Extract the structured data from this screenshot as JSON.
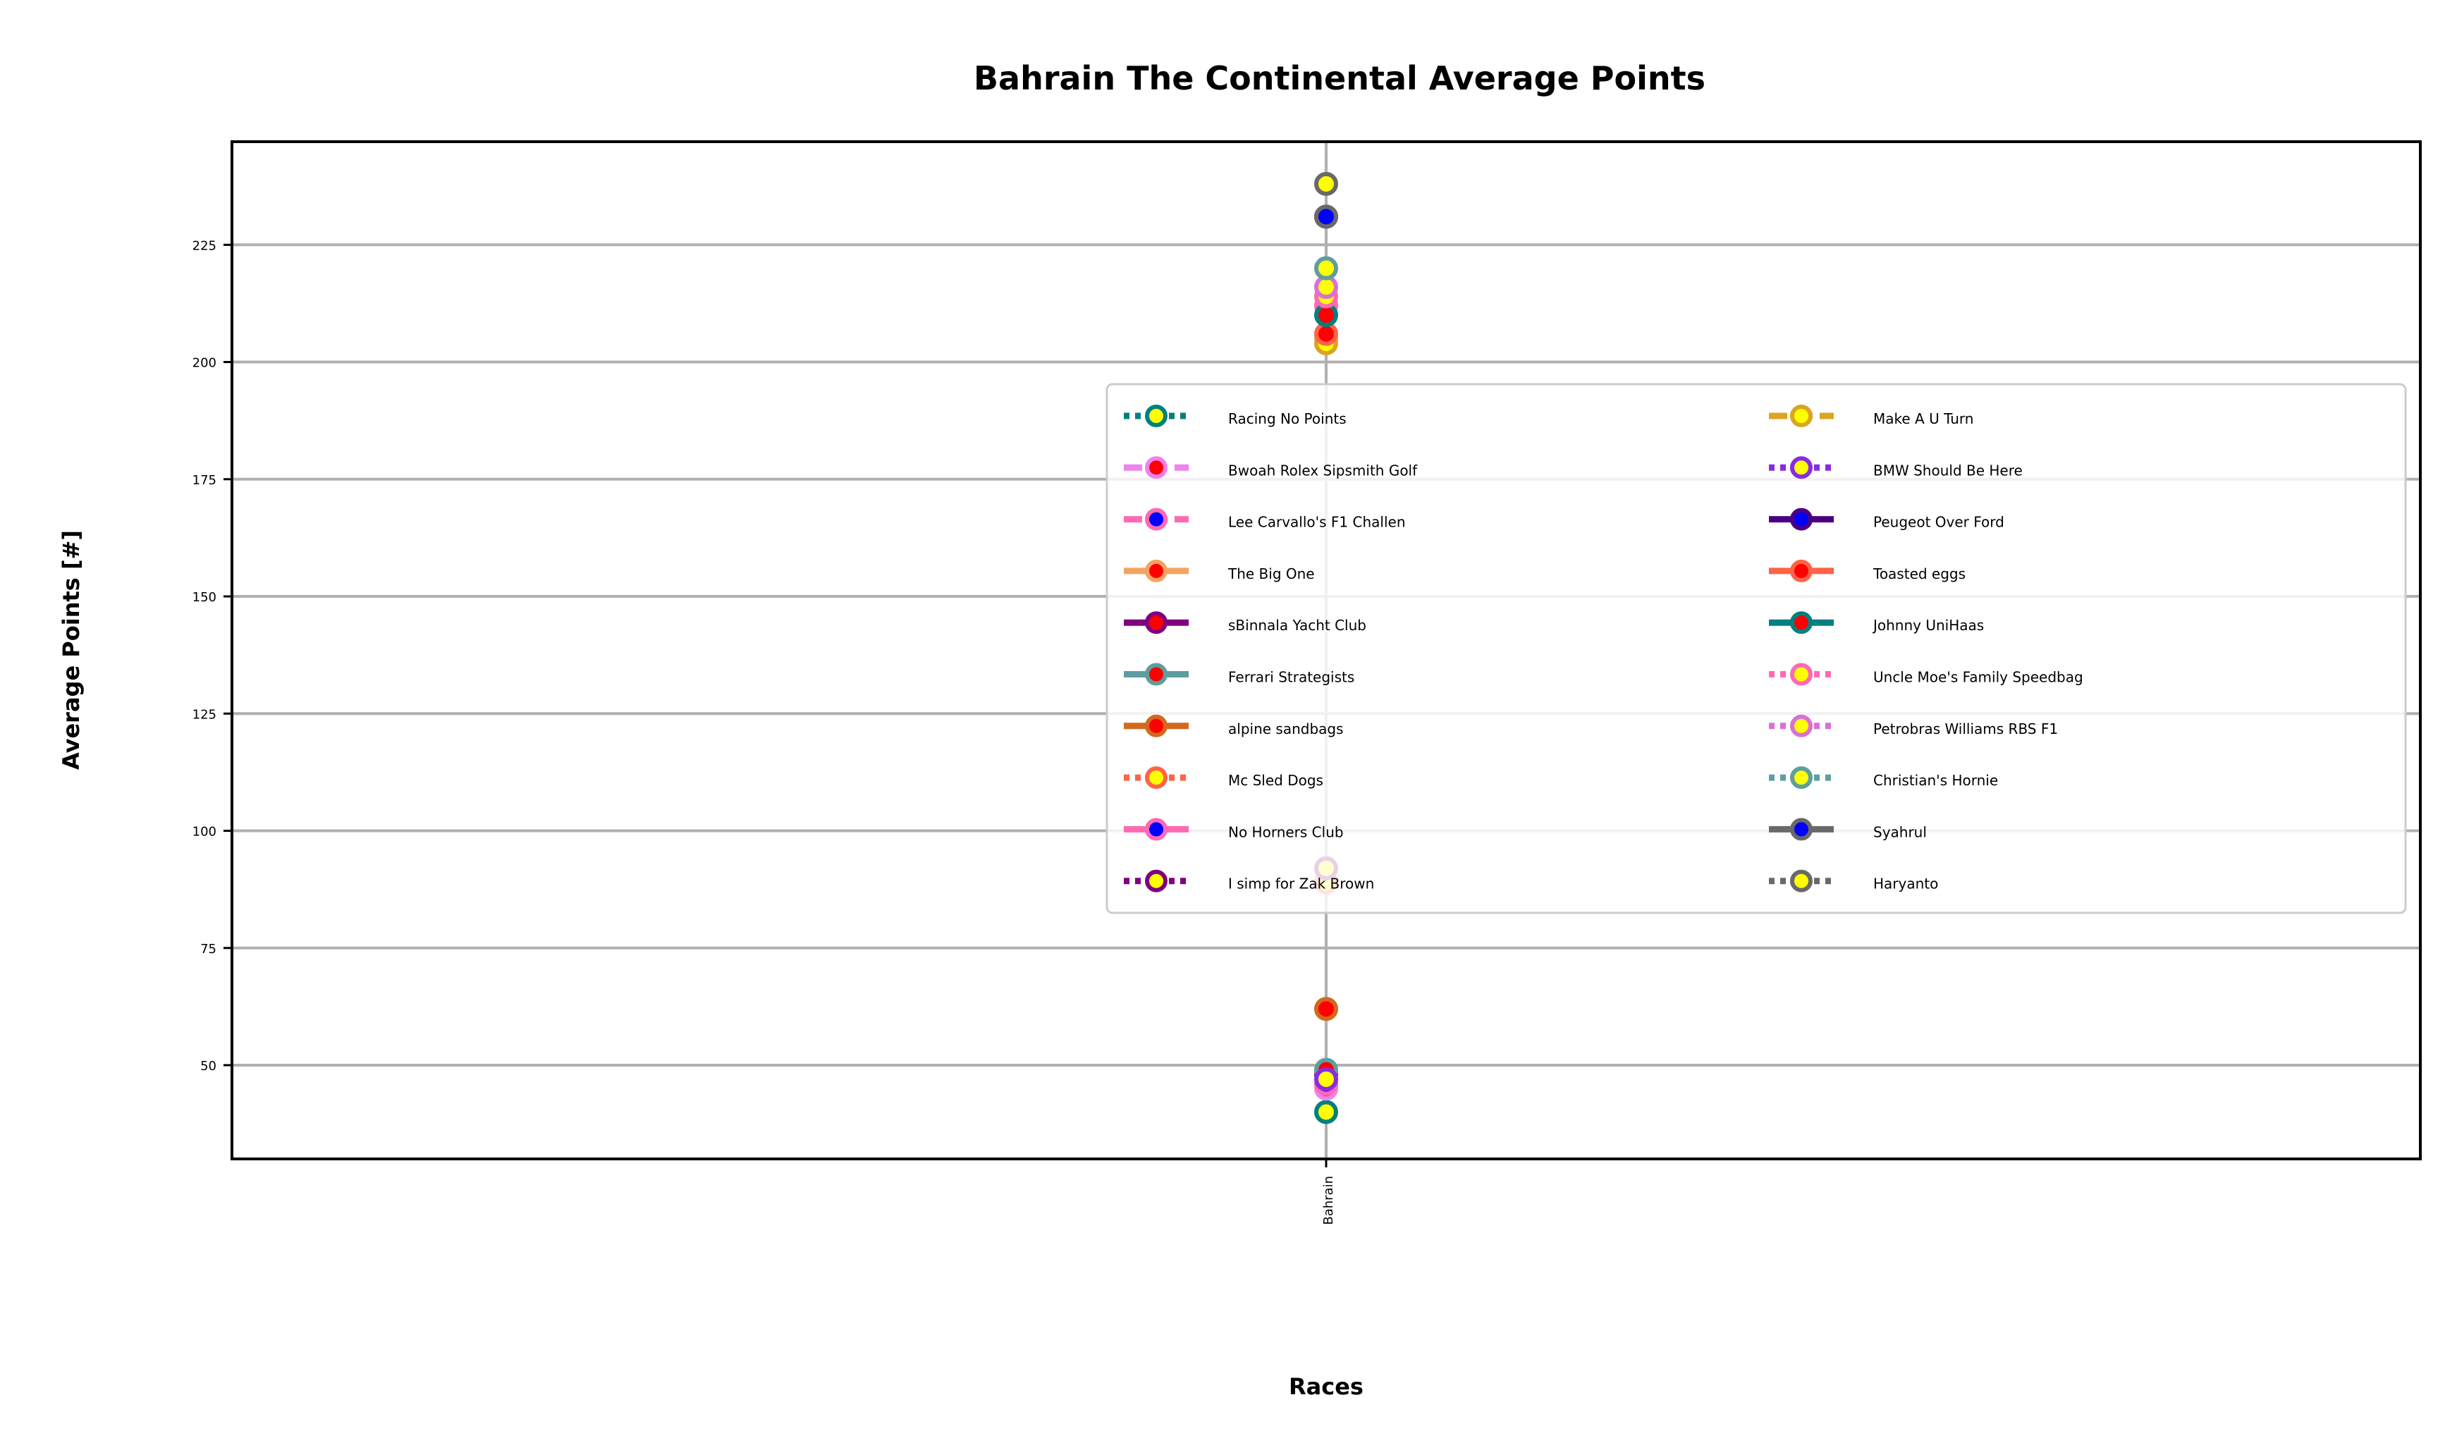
{
  "chart_data": {
    "type": "scatter",
    "title": "Bahrain The Continental Average Points",
    "xlabel": "Races",
    "ylabel": "Average Points [#]",
    "categories": [
      "Bahrain"
    ],
    "ylim": [
      30,
      247
    ],
    "yticks": [
      50,
      75,
      100,
      125,
      150,
      175,
      200,
      225
    ],
    "grid": true,
    "legend_position": "center-right",
    "series": [
      {
        "name": "Racing No Points",
        "value": 40,
        "line_color": "#008080",
        "marker_face": "#ffff00",
        "marker_edge": "#008080",
        "dash": "dotted"
      },
      {
        "name": "Bwoah Rolex Sipsmith Golf",
        "value": 45,
        "line_color": "#ee82ee",
        "marker_face": "#ff0000",
        "marker_edge": "#ee82ee",
        "dash": "dashed"
      },
      {
        "name": "Lee Carvallo's F1 Challen",
        "value": 46,
        "line_color": "#ff69b4",
        "marker_face": "#0000ff",
        "marker_edge": "#ff69b4",
        "dash": "dashed"
      },
      {
        "name": "The Big One",
        "value": 205,
        "line_color": "#f4a460",
        "marker_face": "#ff0000",
        "marker_edge": "#f4a460",
        "dash": "solid"
      },
      {
        "name": "sBinnala Yacht Club",
        "value": 48,
        "line_color": "#800080",
        "marker_face": "#ff0000",
        "marker_edge": "#800080",
        "dash": "solid"
      },
      {
        "name": "Ferrari Strategists",
        "value": 49,
        "line_color": "#5f9ea0",
        "marker_face": "#ff0000",
        "marker_edge": "#5f9ea0",
        "dash": "solid"
      },
      {
        "name": "alpine sandbags",
        "value": 62,
        "line_color": "#d2691e",
        "marker_face": "#ff0000",
        "marker_edge": "#d2691e",
        "dash": "solid"
      },
      {
        "name": "Mc Sled Dogs",
        "value": 89,
        "line_color": "#ff6347",
        "marker_face": "#ffff00",
        "marker_edge": "#ff6347",
        "dash": "dotted"
      },
      {
        "name": "No Horners Club",
        "value": 212,
        "line_color": "#ff69b4",
        "marker_face": "#0000ff",
        "marker_edge": "#ff69b4",
        "dash": "solid"
      },
      {
        "name": "I simp for Zak Brown",
        "value": 92,
        "line_color": "#800080",
        "marker_face": "#ffff00",
        "marker_edge": "#800080",
        "dash": "dotted"
      },
      {
        "name": "Make A U Turn",
        "value": 204,
        "line_color": "#daa520",
        "marker_face": "#ffff00",
        "marker_edge": "#daa520",
        "dash": "dashed"
      },
      {
        "name": "BMW Should Be Here",
        "value": 47,
        "line_color": "#8a2be2",
        "marker_face": "#ffff00",
        "marker_edge": "#8a2be2",
        "dash": "dotted"
      },
      {
        "name": "Peugeot Over Ford",
        "value": 231,
        "line_color": "#4b0082",
        "marker_face": "#0000ff",
        "marker_edge": "#4b0082",
        "dash": "solid"
      },
      {
        "name": "Toasted eggs",
        "value": 206,
        "line_color": "#ff6347",
        "marker_face": "#ff0000",
        "marker_edge": "#ff6347",
        "dash": "solid"
      },
      {
        "name": "Johnny UniHaas",
        "value": 210,
        "line_color": "#008080",
        "marker_face": "#ff0000",
        "marker_edge": "#008080",
        "dash": "solid"
      },
      {
        "name": "Uncle Moe's Family Speedbag",
        "value": 214,
        "line_color": "#ff69b4",
        "marker_face": "#ffff00",
        "marker_edge": "#ff69b4",
        "dash": "dotted"
      },
      {
        "name": "Petrobras Williams RBS F1",
        "value": 216,
        "line_color": "#da70d6",
        "marker_face": "#ffff00",
        "marker_edge": "#da70d6",
        "dash": "dotted"
      },
      {
        "name": "Christian's Hornie",
        "value": 220,
        "line_color": "#5f9ea0",
        "marker_face": "#ffff00",
        "marker_edge": "#5f9ea0",
        "dash": "dotted"
      },
      {
        "name": "Syahrul",
        "value": 231,
        "line_color": "#696969",
        "marker_face": "#0000ff",
        "marker_edge": "#696969",
        "dash": "solid"
      },
      {
        "name": "Haryanto",
        "value": 238,
        "line_color": "#696969",
        "marker_face": "#ffff00",
        "marker_edge": "#696969",
        "dash": "dotted"
      }
    ]
  }
}
